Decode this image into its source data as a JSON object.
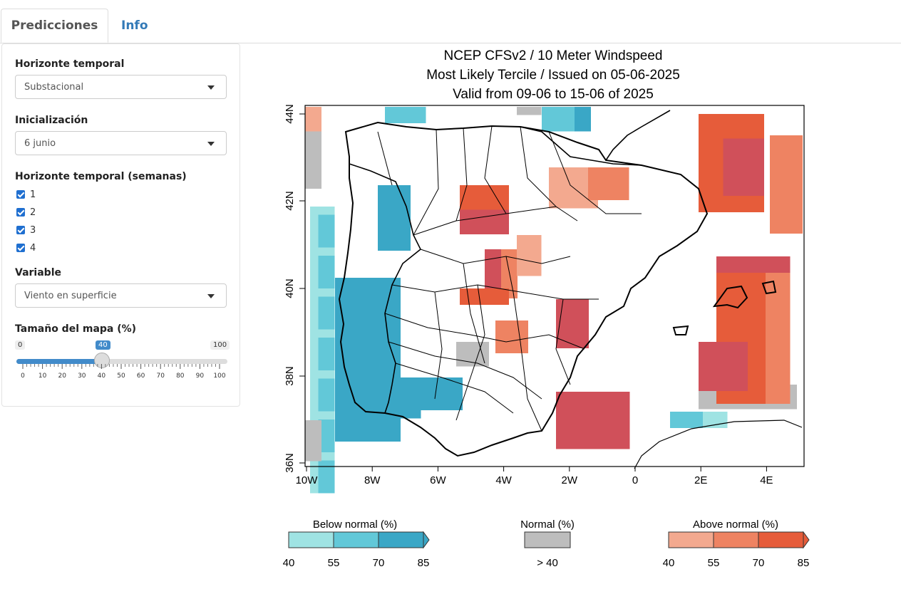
{
  "tabs": [
    {
      "label": "Predicciones",
      "active": true
    },
    {
      "label": "Info",
      "active": false
    }
  ],
  "sidebar": {
    "horizon": {
      "label": "Horizonte temporal",
      "value": "Substacional"
    },
    "init": {
      "label": "Inicialización",
      "value": "6 junio"
    },
    "weeks": {
      "label": "Horizonte temporal (semanas)",
      "options": [
        "1",
        "2",
        "3",
        "4"
      ],
      "checked": [
        true,
        true,
        true,
        true
      ]
    },
    "variable": {
      "label": "Variable",
      "value": "Viento en superficie"
    },
    "size": {
      "label": "Tamaño del mapa (%)",
      "min": "0",
      "max": "100",
      "value": "40",
      "ticks": [
        "0",
        "10",
        "20",
        "30",
        "40",
        "50",
        "60",
        "70",
        "80",
        "90",
        "100"
      ]
    }
  },
  "map": {
    "title_line1": "NCEP CFSv2 / 10 Meter Windspeed",
    "title_line2": "Most Likely Tercile / Issued on 05-06-2025",
    "title_line3": "Valid from 09-06 to 15-06 of 2025",
    "lat_labels": [
      "44N",
      "42N",
      "40N",
      "38N",
      "36N"
    ],
    "lon_labels": [
      "10W",
      "8W",
      "6W",
      "4W",
      "2W",
      "0",
      "2E",
      "4E"
    ],
    "legend": {
      "below": {
        "title": "Below normal (%)",
        "ticks": [
          "40",
          "55",
          "70",
          "85"
        ],
        "colors": [
          "#9fe3e3",
          "#62c8d8",
          "#3aa7c6"
        ]
      },
      "normal": {
        "title": "Normal (%)",
        "tick": "> 40",
        "color": "#bdbdbd"
      },
      "above": {
        "title": "Above normal (%)",
        "ticks": [
          "40",
          "55",
          "70",
          "85"
        ],
        "colors": [
          "#f3a98f",
          "#ee8362",
          "#e65c3a"
        ]
      }
    }
  }
}
